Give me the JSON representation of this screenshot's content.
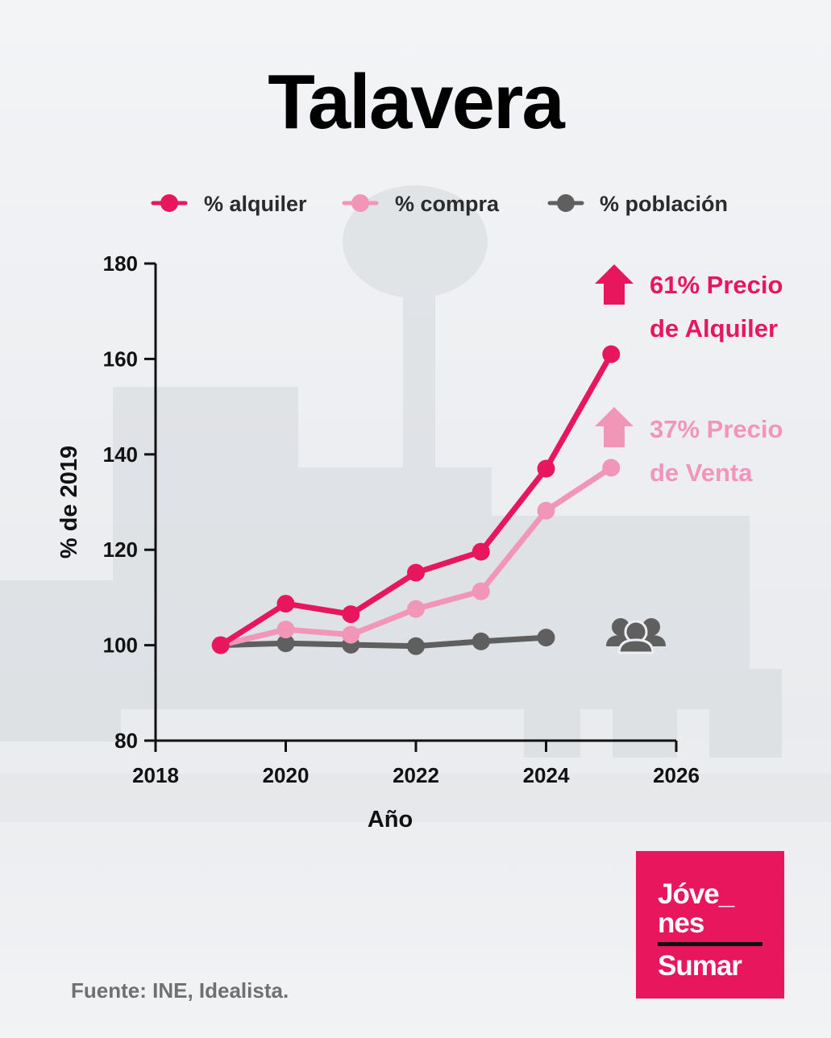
{
  "title": "Talavera",
  "source": "Fuente: INE, Idealista.",
  "logo": {
    "line1": "Jóve_",
    "line2": "nes",
    "line3": "Sumar"
  },
  "colors": {
    "alquiler": "#e8175d",
    "compra": "#f296b8",
    "poblacion": "#5f5f5f",
    "brand": "#e8175d"
  },
  "icons": {
    "arrow": "up-arrow-icon",
    "population": "people-group-icon"
  },
  "chart_data": {
    "type": "line",
    "xlabel": "Año",
    "ylabel": "% de 2019",
    "xlim": [
      2018,
      2026
    ],
    "ylim": [
      80,
      180
    ],
    "xticks": [
      2018,
      2020,
      2022,
      2024,
      2026
    ],
    "yticks": [
      80,
      100,
      120,
      140,
      160,
      180
    ],
    "grid": false,
    "legend_position": "top",
    "series": [
      {
        "name": "% alquiler",
        "x": [
          2019,
          2020,
          2021,
          2022,
          2023,
          2024,
          2025
        ],
        "values": [
          100,
          108.7,
          106.5,
          115.2,
          119.6,
          137,
          161
        ]
      },
      {
        "name": "% compra",
        "x": [
          2019,
          2020,
          2021,
          2022,
          2023,
          2024,
          2025
        ],
        "values": [
          100,
          103.3,
          102.2,
          107.6,
          111.3,
          128.2,
          137.2
        ]
      },
      {
        "name": "% población",
        "x": [
          2019,
          2020,
          2021,
          2022,
          2023,
          2024
        ],
        "values": [
          100,
          100.4,
          100.1,
          99.8,
          100.8,
          101.6
        ]
      }
    ],
    "annotations": [
      {
        "line1": "61% Precio",
        "line2": "de Alquiler",
        "series": "% alquiler"
      },
      {
        "line1": "37% Precio",
        "line2": "de Venta",
        "series": "% compra"
      }
    ]
  }
}
